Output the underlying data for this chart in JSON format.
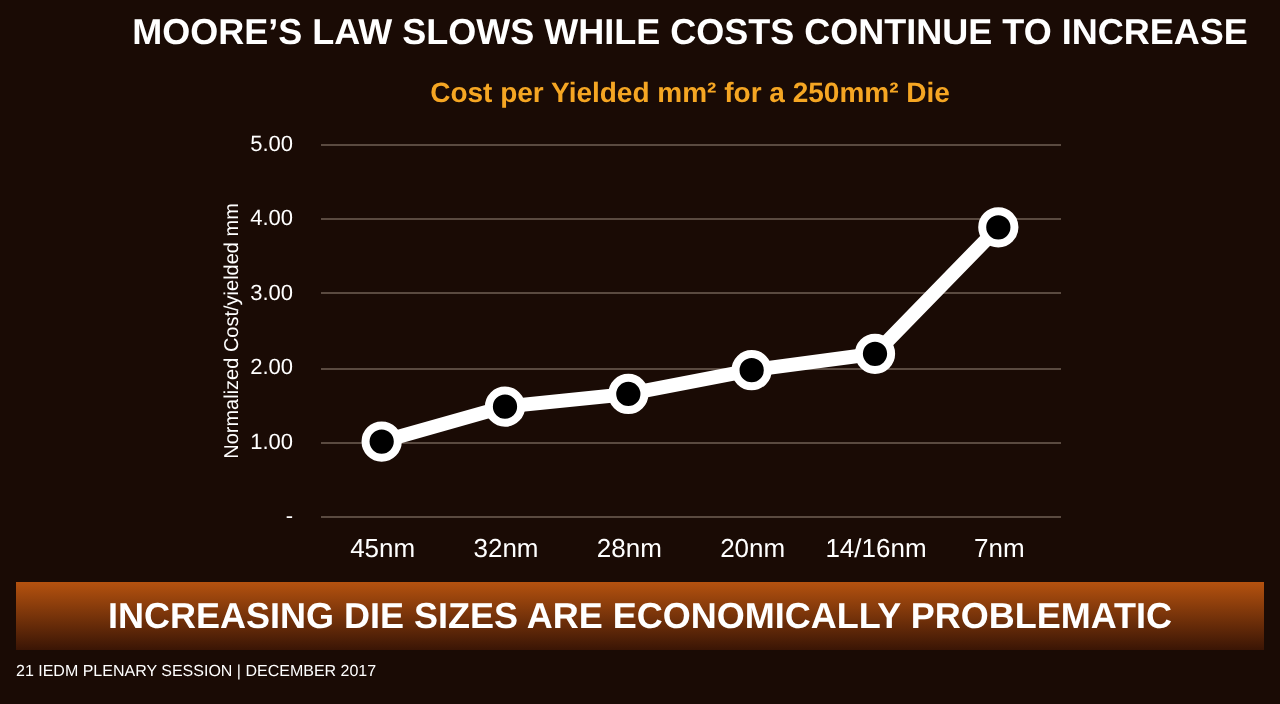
{
  "chart_data": {
    "type": "line",
    "title": "MOORE’S LAW SLOWS WHILE COSTS CONTINUE TO INCREASE",
    "subtitle": "Cost per Yielded mm² for a 250mm² Die",
    "ylabel": "Normalized Cost/yielded mm",
    "categories": [
      "45nm",
      "32nm",
      "28nm",
      "20nm",
      "14/16nm",
      "7nm"
    ],
    "series": [
      {
        "color": "#ffffff",
        "values": [
          1.0,
          1.47,
          1.64,
          1.96,
          2.18,
          3.88
        ]
      }
    ],
    "ylim": [
      0,
      5
    ],
    "yticks": [
      {
        "value": 0,
        "label": "-"
      },
      {
        "value": 1,
        "label": "1.00"
      },
      {
        "value": 2,
        "label": "2.00"
      },
      {
        "value": 3,
        "label": "3.00"
      },
      {
        "value": 4,
        "label": "4.00"
      },
      {
        "value": 5,
        "label": "5.00"
      }
    ],
    "grid": "y",
    "marker": "circle",
    "line_style": "solid",
    "annotations": [
      "INCREASING DIE SIZES ARE ECONOMICALLY PROBLEMATIC",
      "21 IEDM PLENARY SESSION | DECEMBER 2017"
    ]
  }
}
